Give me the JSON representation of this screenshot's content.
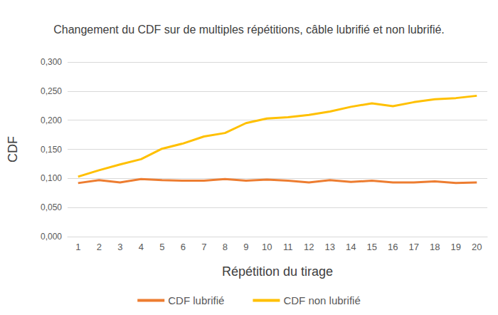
{
  "chart_data": {
    "type": "line",
    "title": "Changement du CDF sur de multiples répétitions, câble lubrifié et non lubrifié.",
    "x_label": "Répétition du tirage",
    "y_label": "CDF",
    "categories": [
      "1",
      "2",
      "3",
      "4",
      "5",
      "6",
      "7",
      "8",
      "9",
      "10",
      "11",
      "12",
      "13",
      "14",
      "15",
      "16",
      "17",
      "18",
      "19",
      "20"
    ],
    "series": [
      {
        "name": "CDF lubrifié",
        "color": "#ED7D31",
        "values": [
          0.092,
          0.097,
          0.093,
          0.099,
          0.097,
          0.096,
          0.096,
          0.099,
          0.096,
          0.098,
          0.096,
          0.093,
          0.097,
          0.094,
          0.096,
          0.093,
          0.093,
          0.095,
          0.092,
          0.093
        ]
      },
      {
        "name": "CDF non lubrifié",
        "color": "#FFC000",
        "values": [
          0.103,
          0.114,
          0.124,
          0.133,
          0.151,
          0.16,
          0.172,
          0.178,
          0.195,
          0.203,
          0.205,
          0.209,
          0.215,
          0.223,
          0.229,
          0.224,
          0.231,
          0.236,
          0.238,
          0.242
        ]
      }
    ],
    "ylim": [
      0,
      0.3
    ],
    "yticks": [
      {
        "value": 0,
        "label": "0,000"
      },
      {
        "value": 0.05,
        "label": "0,050"
      },
      {
        "value": 0.1,
        "label": "0,100"
      },
      {
        "value": 0.15,
        "label": "0,150"
      },
      {
        "value": 0.2,
        "label": "0,200"
      },
      {
        "value": 0.25,
        "label": "0,250"
      },
      {
        "value": 0.3,
        "label": "0,300"
      }
    ],
    "grid": true,
    "legend": "bottom",
    "marker": "none"
  }
}
